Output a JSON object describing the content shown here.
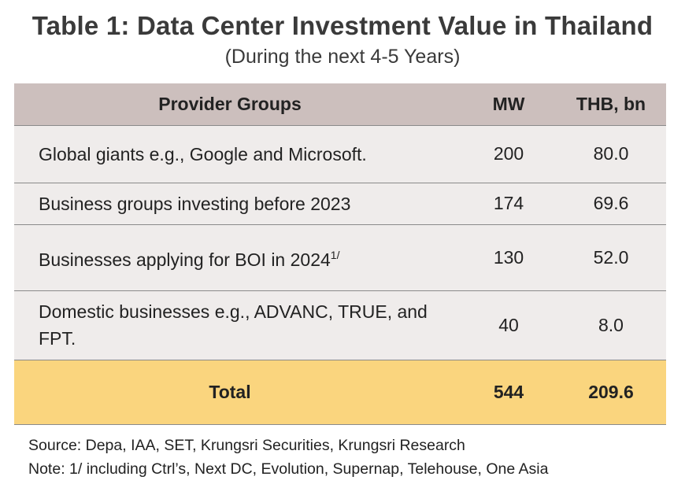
{
  "title": "Table 1: Data Center Investment Value in Thailand",
  "subtitle": "(During the next 4-5 Years)",
  "table": {
    "headers": [
      "Provider Groups",
      "MW",
      "THB, bn"
    ],
    "rows": [
      {
        "group": "Global giants e.g., Google and Microsoft.",
        "sup": "",
        "mw": "200",
        "thb": "80.0"
      },
      {
        "group": "Business groups investing before 2023",
        "sup": "",
        "mw": "174",
        "thb": "69.6"
      },
      {
        "group": "Businesses applying for BOI in 2024",
        "sup": "1/",
        "mw": "130",
        "thb": "52.0"
      },
      {
        "group": "Domestic businesses e.g., ADVANC, TRUE, and FPT.",
        "sup": "",
        "mw": "40",
        "thb": "8.0"
      }
    ],
    "total": {
      "label": "Total",
      "mw": "544",
      "thb": "209.6"
    }
  },
  "source": "Source: Depa, IAA, SET, Krungsri Securities,  Krungsri Research",
  "note": "Note: 1/ including Ctrl’s, Next DC, Evolution, Supernap, Telehouse, One Asia",
  "colors": {
    "header_bg": "#ccbfbd",
    "row_bg": "#efeceb",
    "total_bg": "#fad57e"
  }
}
